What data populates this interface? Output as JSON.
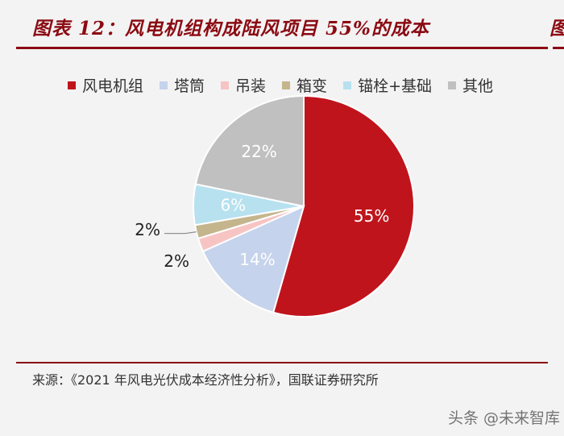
{
  "title": "图表 12：风电机组构成陆风项目 55%的成本",
  "legend": [
    {
      "label": "风电机组",
      "color": "#c0141c"
    },
    {
      "label": "塔筒",
      "color": "#c5d3ec"
    },
    {
      "label": "吊装",
      "color": "#f7c4c4"
    },
    {
      "label": "箱变",
      "color": "#c4b58d"
    },
    {
      "label": "锚栓+基础",
      "color": "#b7e1ef"
    },
    {
      "label": "其他",
      "color": "#c0c0c0"
    }
  ],
  "chart_data": {
    "type": "pie",
    "slices": [
      {
        "label": "风电机组",
        "value": 55,
        "text": "55%",
        "color": "#c0141c"
      },
      {
        "label": "塔筒",
        "value": 14,
        "text": "14%",
        "color": "#c5d3ec"
      },
      {
        "label": "吊装",
        "value": 2,
        "text": "2%",
        "color": "#f7c4c4"
      },
      {
        "label": "箱变",
        "value": 2,
        "text": "2%",
        "color": "#c4b58d"
      },
      {
        "label": "锚栓+基础",
        "value": 6,
        "text": "6%",
        "color": "#b7e1ef"
      },
      {
        "label": "其他",
        "value": 22,
        "text": "22%",
        "color": "#c0c0c0"
      }
    ],
    "start_angle_deg": 0,
    "direction": "clockwise"
  },
  "source": "来源：《2021 年风电光伏成本经济性分析》，国联证券研究所",
  "watermark": "头条 @未来智库",
  "next_panel_char": "图"
}
